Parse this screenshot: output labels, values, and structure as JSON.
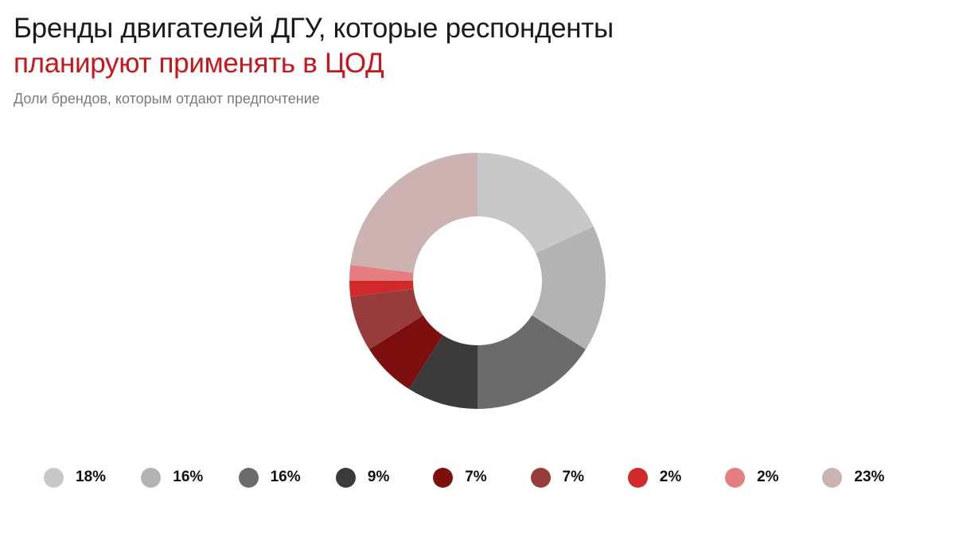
{
  "header": {
    "title_line1": "Бренды двигателей ДГУ, которые респонденты",
    "title_line2": "планируют применять в ЦОД",
    "subtitle": "Доли брендов, которым отдают предпочтение"
  },
  "colors": {
    "title": "#1a1a1a",
    "accent": "#c8161d",
    "subtitle": "#7b7b7b"
  },
  "chart_data": {
    "type": "pie",
    "variant": "donut",
    "title": "Бренды двигателей ДГУ, которые респонденты планируют применять в ЦОД",
    "subtitle": "Доли брендов, которым отдают предпочтение",
    "start": "12 o'clock, clockwise",
    "legend_placement": "bottom",
    "slices": [
      {
        "value": 18,
        "label": "18%",
        "color": "#c8c8c8"
      },
      {
        "value": 16,
        "label": "16%",
        "color": "#b3b3b3"
      },
      {
        "value": 16,
        "label": "16%",
        "color": "#6c6b6b"
      },
      {
        "value": 9,
        "label": "9%",
        "color": "#3b3b3b"
      },
      {
        "value": 7,
        "label": "7%",
        "color": "#7e0f0f"
      },
      {
        "value": 7,
        "label": "7%",
        "color": "#973c3a"
      },
      {
        "value": 2,
        "label": "2%",
        "color": "#d12a2a"
      },
      {
        "value": 2,
        "label": "2%",
        "color": "#e57e80"
      },
      {
        "value": 23,
        "label": "23%",
        "color": "#cdb2b2"
      }
    ]
  }
}
